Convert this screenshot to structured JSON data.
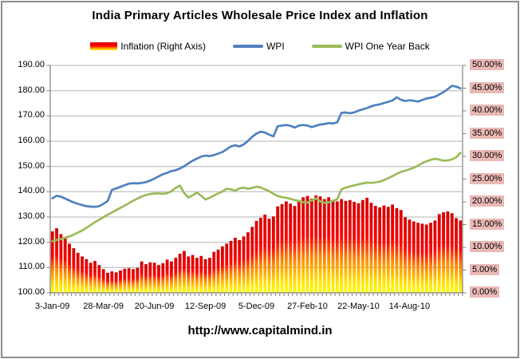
{
  "title": "India Primary Articles Wholesale Price Index and Inflation",
  "footer": "http://www.capitalmind.in",
  "legend": [
    {
      "label": "Inflation (Right Axis)",
      "type": "bar-gradient"
    },
    {
      "label": "WPI",
      "type": "line",
      "color": "#4f81bd"
    },
    {
      "label": "WPI One Year Back",
      "type": "line",
      "color": "#9bbb59"
    }
  ],
  "colors": {
    "wpi_line": "#4f81bd",
    "wpi_year_back_line": "#9bbb59",
    "bar_gradient": [
      "#d40000",
      "#fe0000",
      "#ff8000",
      "#ffe400",
      "#ffff00"
    ],
    "bar_gradient_offsets": [
      "0%",
      "40%",
      "62%",
      "88%",
      "100%"
    ],
    "right_label_bg": "#e9b9b5",
    "gridline": "#b3b3b3",
    "axis": "#808080",
    "text": "#000000"
  },
  "chart_data": {
    "type": "combo",
    "title": "India Primary Articles Wholesale Price Index and Inflation",
    "n_points": 97,
    "tick_interval": 12,
    "x_tick_labels": [
      "3-Jan-09",
      "28-Mar-09",
      "20-Jun-09",
      "12-Sep-09",
      "5-Dec-09",
      "27-Feb-10",
      "22-May-10",
      "14-Aug-10"
    ],
    "left_axis": {
      "min": 100,
      "max": 190,
      "step": 10,
      "labels": [
        "190.00",
        "180.00",
        "170.00",
        "160.00",
        "150.00",
        "140.00",
        "130.00",
        "120.00",
        "110.00",
        "100.00"
      ]
    },
    "right_axis": {
      "min": 0,
      "max": 50,
      "step": 5,
      "labels": [
        "50.00%",
        "45.00%",
        "40.00%",
        "35.00%",
        "30.00%",
        "25.00%",
        "20.00%",
        "15.00%",
        "10.00%",
        "5.00%",
        "0.00%"
      ]
    },
    "grid": "horizontal",
    "legend_position": "top",
    "series": [
      {
        "name": "Inflation (Right Axis)",
        "type": "bar",
        "axis": "right",
        "unit": "%",
        "values": [
          13.5,
          14.2,
          12.9,
          12.3,
          10.8,
          9.8,
          8.8,
          8.0,
          7.4,
          6.6,
          7.0,
          6.1,
          5.2,
          4.4,
          4.7,
          4.5,
          4.9,
          5.3,
          5.4,
          5.2,
          5.5,
          6.9,
          6.3,
          6.7,
          6.6,
          6.1,
          6.5,
          7.3,
          6.9,
          7.7,
          8.6,
          9.2,
          8.0,
          8.3,
          7.7,
          8.1,
          7.4,
          7.7,
          9.0,
          9.5,
          10.2,
          10.8,
          11.4,
          12.1,
          11.6,
          12.4,
          13.3,
          14.5,
          15.8,
          16.5,
          17.2,
          16.3,
          16.8,
          19.0,
          19.5,
          20.1,
          19.6,
          19.1,
          20.3,
          21.0,
          21.3,
          20.7,
          21.4,
          21.2,
          20.6,
          21.0,
          20.4,
          20.1,
          20.6,
          20.2,
          20.4,
          20.0,
          19.7,
          20.4,
          20.9,
          19.8,
          19.1,
          18.8,
          19.2,
          18.9,
          19.4,
          18.6,
          18.2,
          16.6,
          16.1,
          15.7,
          15.4,
          15.2,
          15.0,
          15.4,
          15.9,
          17.3,
          17.7,
          17.9,
          17.5,
          16.4,
          15.9
        ]
      },
      {
        "name": "WPI",
        "type": "line",
        "axis": "left",
        "color": "#4f81bd",
        "values": [
          137.4,
          138.4,
          138.1,
          137.3,
          136.5,
          135.8,
          135.2,
          134.7,
          134.3,
          134.1,
          134.0,
          134.3,
          135.2,
          136.3,
          140.7,
          141.3,
          141.9,
          142.6,
          143.2,
          143.4,
          143.3,
          143.5,
          143.8,
          144.4,
          145.2,
          146.1,
          146.9,
          147.5,
          148.2,
          148.5,
          149.2,
          150.1,
          151.2,
          152.3,
          153.1,
          153.9,
          154.3,
          154.1,
          154.5,
          155.1,
          155.7,
          156.8,
          157.9,
          158.4,
          157.9,
          158.7,
          160.1,
          161.7,
          163.0,
          163.8,
          163.4,
          162.6,
          161.9,
          165.9,
          166.2,
          166.4,
          166.1,
          165.4,
          166.2,
          166.4,
          166.2,
          165.6,
          166.1,
          166.6,
          166.8,
          167.2,
          167.0,
          167.5,
          171.2,
          171.4,
          171.1,
          171.4,
          172.1,
          172.6,
          173.1,
          173.8,
          174.3,
          174.6,
          175.1,
          175.6,
          176.1,
          177.4,
          176.4,
          175.9,
          176.2,
          176.0,
          175.7,
          176.3,
          176.9,
          177.2,
          177.6,
          178.5,
          179.4,
          180.6,
          181.9,
          181.6,
          180.9
        ]
      },
      {
        "name": "WPI One Year Back",
        "type": "line",
        "axis": "left",
        "color": "#9bbb59",
        "values": [
          120.4,
          120.9,
          121.3,
          121.8,
          122.3,
          123.0,
          123.8,
          124.7,
          125.7,
          126.8,
          127.9,
          128.9,
          129.9,
          130.9,
          131.8,
          132.7,
          133.6,
          134.5,
          135.5,
          136.4,
          137.3,
          138.1,
          138.7,
          139.1,
          139.3,
          139.3,
          139.2,
          139.4,
          140.2,
          141.5,
          142.4,
          139.5,
          137.7,
          138.6,
          139.7,
          138.4,
          136.9,
          137.6,
          138.5,
          139.3,
          140.1,
          141.2,
          141.0,
          140.4,
          141.3,
          141.6,
          141.2,
          141.5,
          142.0,
          141.7,
          141.0,
          140.2,
          139.2,
          138.3,
          137.9,
          137.6,
          137.2,
          136.7,
          136.3,
          135.9,
          135.7,
          136.6,
          137.4,
          136.2,
          135.6,
          135.8,
          136.4,
          137.0,
          140.9,
          141.6,
          142.1,
          142.5,
          142.9,
          143.3,
          143.6,
          143.5,
          143.7,
          144.0,
          144.6,
          145.3,
          146.2,
          147.1,
          147.8,
          148.3,
          148.9,
          149.5,
          150.3,
          151.3,
          152.0,
          152.6,
          153.1,
          152.7,
          152.3,
          152.4,
          152.8,
          153.6,
          155.4
        ]
      }
    ]
  }
}
